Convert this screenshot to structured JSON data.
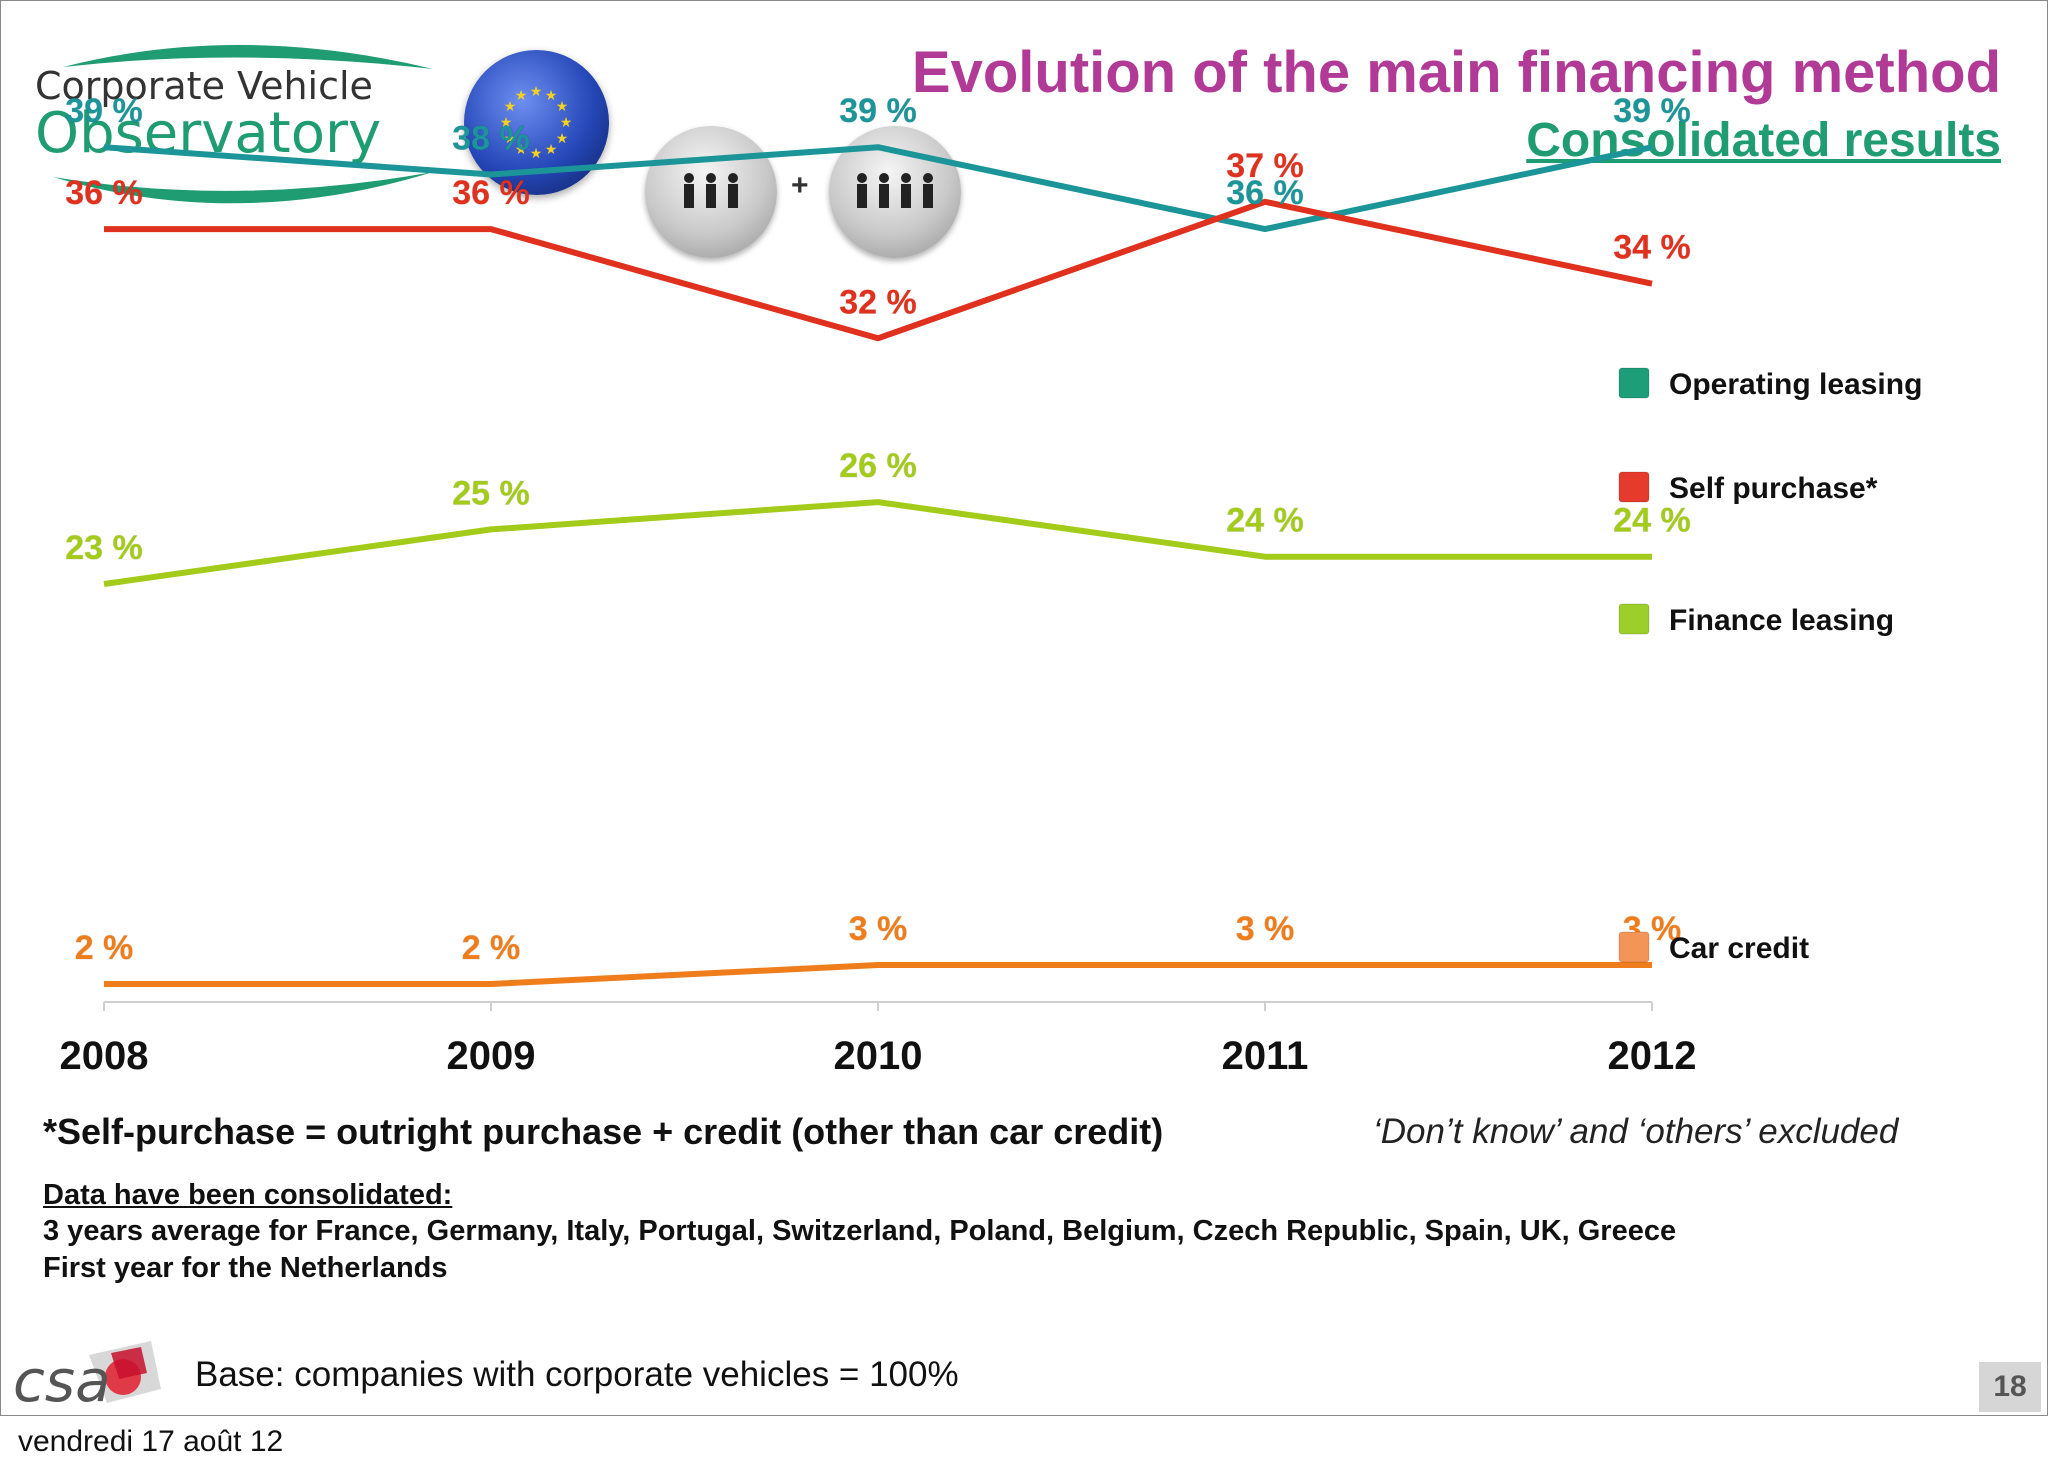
{
  "title": "Evolution of the main financing method",
  "subtitle": "Consolidated results",
  "logo": {
    "line1": "Corporate Vehicle",
    "line2": "Observatory"
  },
  "icons": {
    "group_a": "people-group-3-icon",
    "group_b": "people-group-4-icon",
    "plus": "+"
  },
  "chart_data": {
    "type": "line",
    "title": "Evolution of the main financing method",
    "subtitle": "Consolidated results",
    "x": [
      "2008",
      "2009",
      "2010",
      "2011",
      "2012"
    ],
    "ylim": [
      0,
      40
    ],
    "grid": false,
    "legend_placement": "right",
    "series": [
      {
        "name": "Operating leasing",
        "color": "#1b9598",
        "marker": "#1d9e78",
        "values": [
          39,
          38,
          39,
          36,
          39
        ],
        "labels": [
          "39 %",
          "38 %",
          "39 %",
          "36 %",
          "39 %"
        ]
      },
      {
        "name": "Self purchase*",
        "color": "#e0301e",
        "marker": "#e63a2d",
        "values": [
          36,
          36,
          32,
          37,
          34
        ],
        "labels": [
          "36 %",
          "36 %",
          "32 %",
          "37 %",
          "34 %"
        ]
      },
      {
        "name": "Finance leasing",
        "color": "#a3cc1a",
        "marker": "#9ccf2a",
        "values": [
          23,
          25,
          26,
          24,
          24
        ],
        "labels": [
          "23 %",
          "25 %",
          "26 %",
          "24 %",
          "24 %"
        ]
      },
      {
        "name": "Car credit",
        "color": "#f07d1b",
        "marker": "#f49558",
        "values": [
          2,
          2,
          3,
          3,
          3
        ],
        "labels": [
          "2 %",
          "2 %",
          "3 %",
          "3 %",
          "3 %"
        ]
      }
    ]
  },
  "footnote": "*Self-purchase = outright purchase + credit (other than car credit)",
  "excluded_note": "‘Don’t know’ and ‘others’ excluded",
  "consolidation": {
    "heading": "Data have been consolidated:",
    "line1": "3 years average for France, Germany, Italy, Portugal, Switzerland, Poland, Belgium, Czech Republic, Spain, UK, Greece",
    "line2": "First year for the Netherlands"
  },
  "base": "Base: companies with corporate vehicles = 100%",
  "brand": "csa",
  "page_number": "18",
  "date": "vendredi 17 août 12"
}
